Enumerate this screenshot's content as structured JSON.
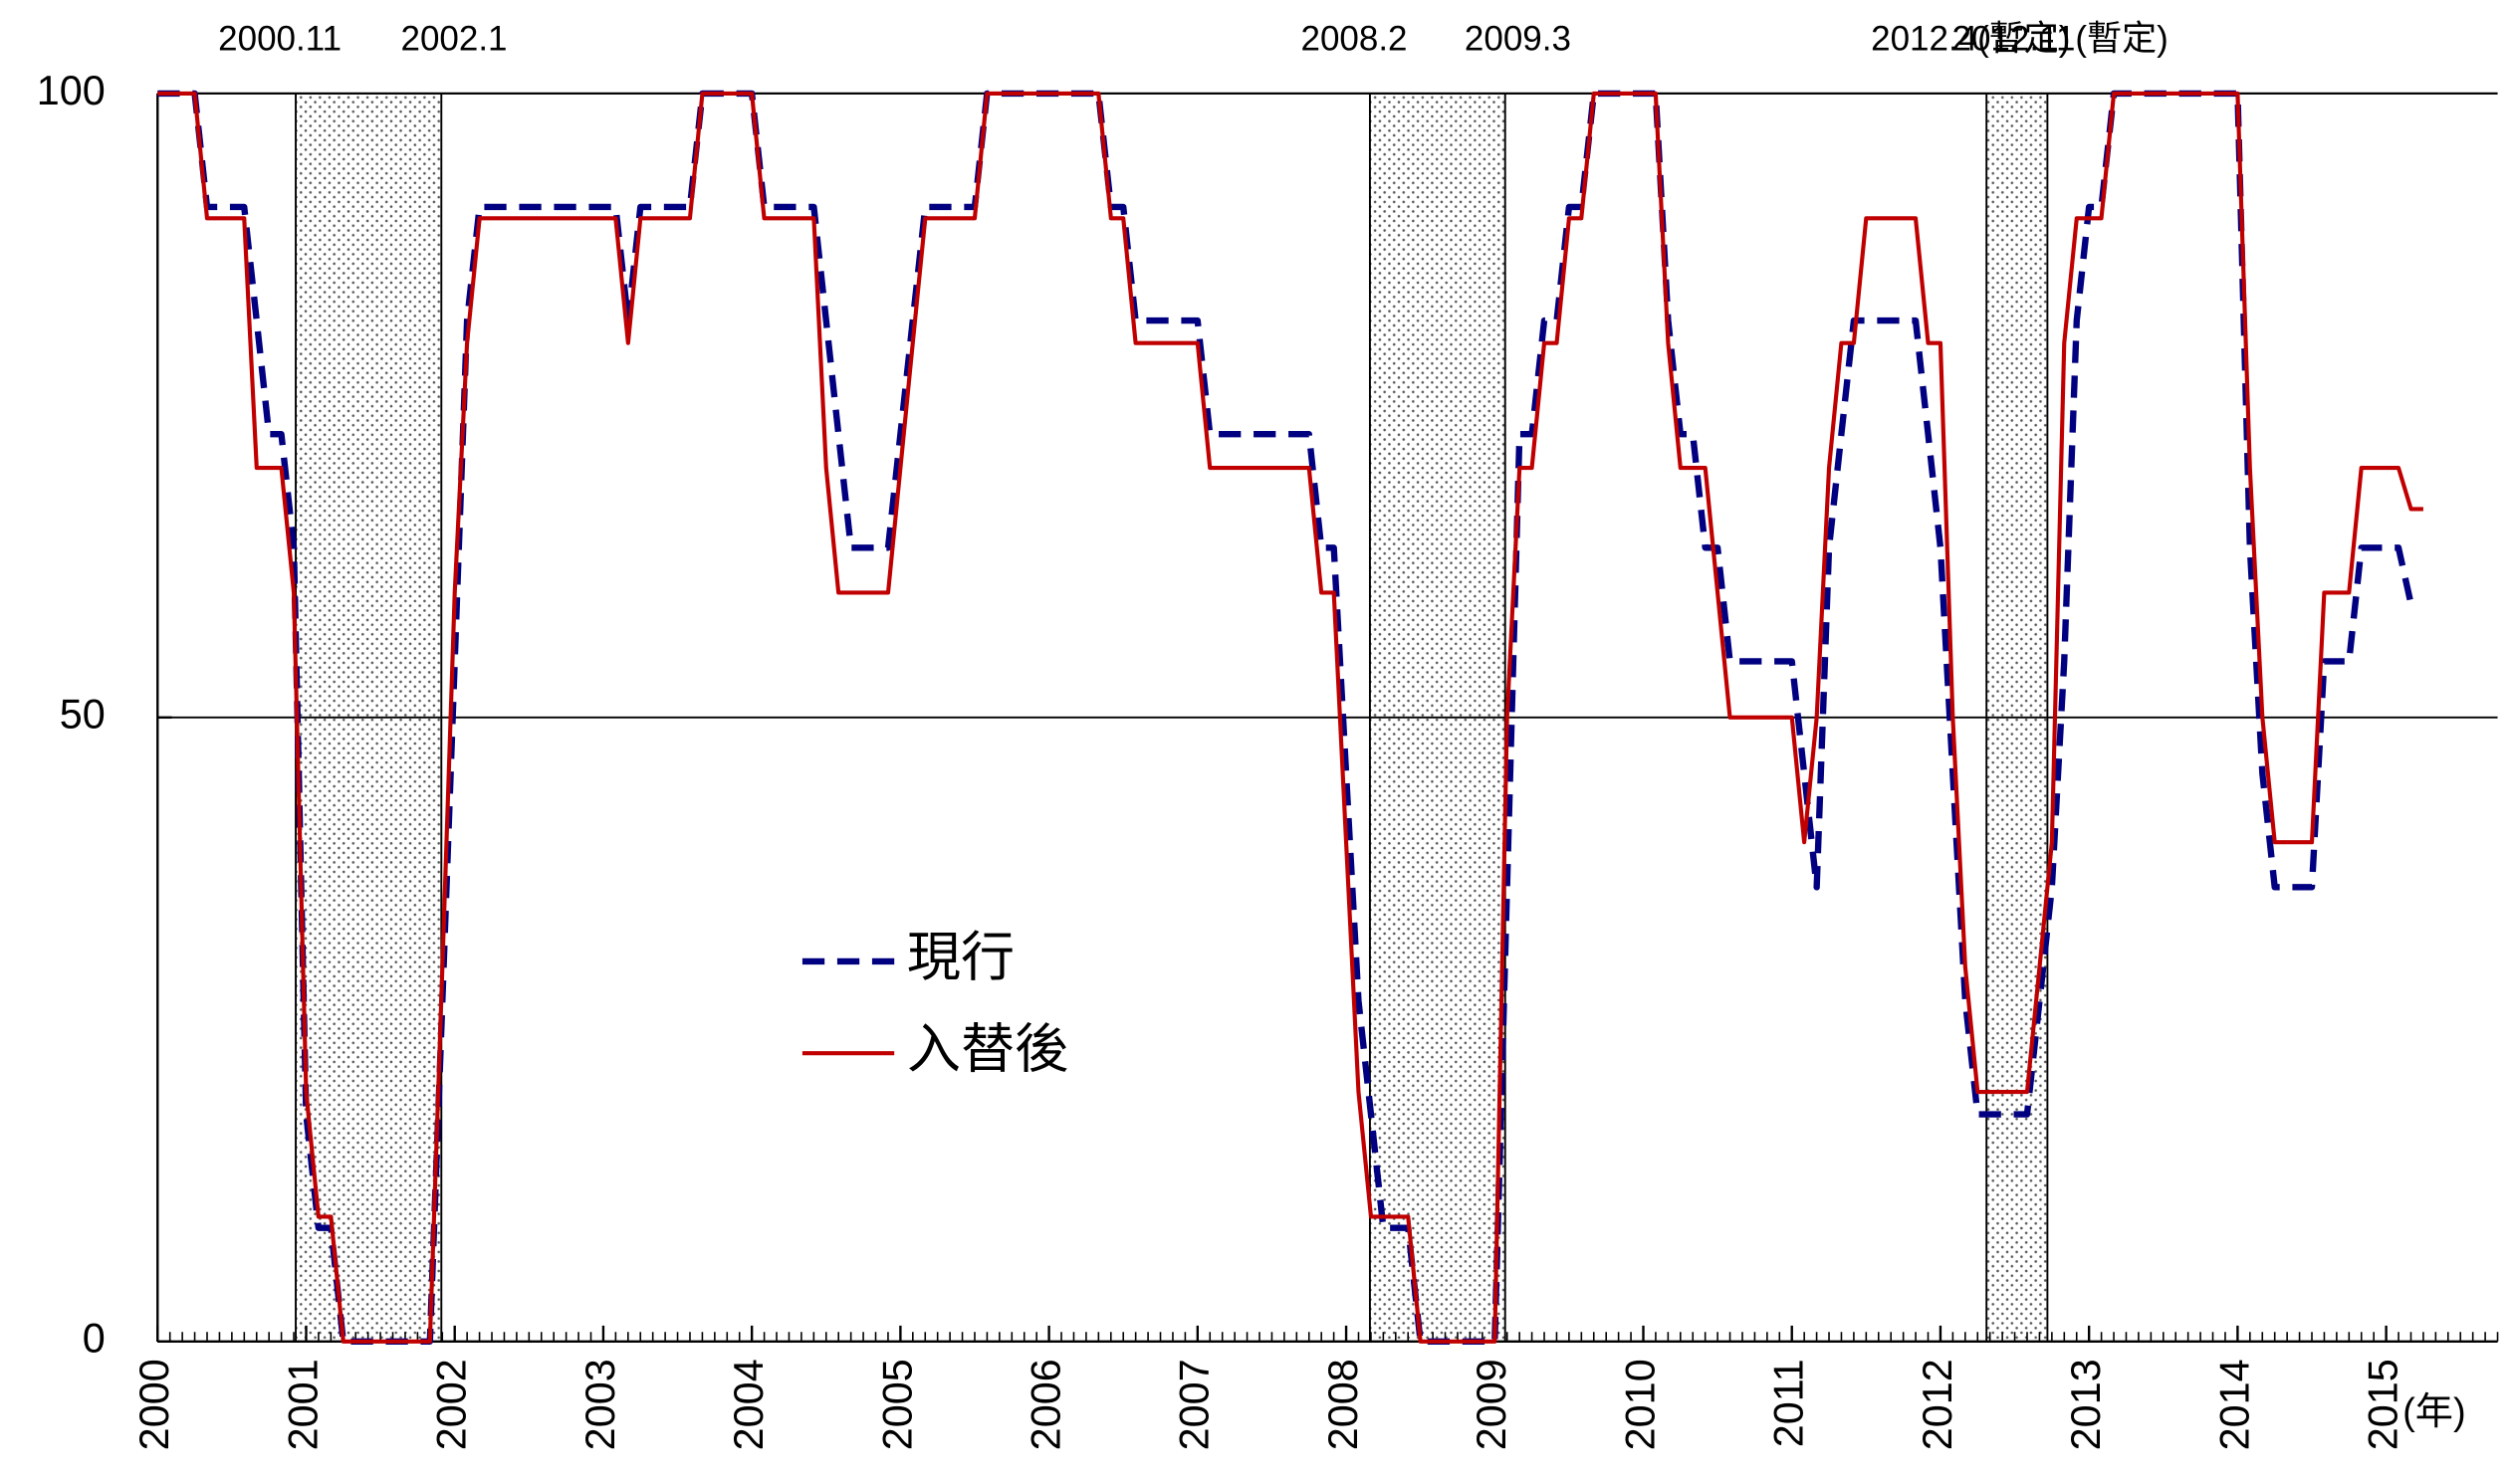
{
  "chart_data": {
    "type": "line",
    "x_label": "(年)",
    "x": [
      2000,
      2000.083,
      2000.167,
      2000.25,
      2000.333,
      2000.417,
      2000.5,
      2000.583,
      2000.667,
      2000.75,
      2000.833,
      2000.917,
      2001,
      2001.083,
      2001.167,
      2001.25,
      2001.333,
      2001.417,
      2001.5,
      2001.583,
      2001.667,
      2001.75,
      2001.833,
      2001.917,
      2002,
      2002.083,
      2002.167,
      2002.25,
      2002.333,
      2002.417,
      2002.5,
      2002.583,
      2002.667,
      2002.75,
      2002.833,
      2002.917,
      2003,
      2003.083,
      2003.167,
      2003.25,
      2003.333,
      2003.417,
      2003.5,
      2003.583,
      2003.667,
      2003.75,
      2003.833,
      2003.917,
      2004,
      2004.083,
      2004.167,
      2004.25,
      2004.333,
      2004.417,
      2004.5,
      2004.583,
      2004.667,
      2004.75,
      2004.833,
      2004.917,
      2005,
      2005.083,
      2005.167,
      2005.25,
      2005.333,
      2005.417,
      2005.5,
      2005.583,
      2005.667,
      2005.75,
      2005.833,
      2005.917,
      2006,
      2006.083,
      2006.167,
      2006.25,
      2006.333,
      2006.417,
      2006.5,
      2006.583,
      2006.667,
      2006.75,
      2006.833,
      2006.917,
      2007,
      2007.083,
      2007.167,
      2007.25,
      2007.333,
      2007.417,
      2007.5,
      2007.583,
      2007.667,
      2007.75,
      2007.833,
      2007.917,
      2008,
      2008.083,
      2008.167,
      2008.25,
      2008.333,
      2008.417,
      2008.5,
      2008.583,
      2008.667,
      2008.75,
      2008.833,
      2008.917,
      2009,
      2009.083,
      2009.167,
      2009.25,
      2009.333,
      2009.417,
      2009.5,
      2009.583,
      2009.667,
      2009.75,
      2009.833,
      2009.917,
      2010,
      2010.083,
      2010.167,
      2010.25,
      2010.333,
      2010.417,
      2010.5,
      2010.583,
      2010.667,
      2010.75,
      2010.833,
      2010.917,
      2011,
      2011.083,
      2011.167,
      2011.25,
      2011.333,
      2011.417,
      2011.5,
      2011.583,
      2011.667,
      2011.75,
      2011.833,
      2011.917,
      2012,
      2012.083,
      2012.167,
      2012.25,
      2012.333,
      2012.417,
      2012.5,
      2012.583,
      2012.667,
      2012.75,
      2012.833,
      2012.917,
      2013,
      2013.083,
      2013.167,
      2013.25,
      2013.333,
      2013.417,
      2013.5,
      2013.583,
      2013.667,
      2013.75,
      2013.833,
      2013.917,
      2014,
      2014.083,
      2014.167,
      2014.25,
      2014.333,
      2014.417,
      2014.5,
      2014.583,
      2014.667,
      2014.75,
      2014.833,
      2014.917,
      2015,
      2015.083,
      2015.167,
      2015.25
    ],
    "series": [
      {
        "name": "現行",
        "color": "#000080",
        "dashed": true,
        "values": [
          100,
          100,
          100,
          100,
          90.9,
          90.9,
          90.9,
          90.9,
          81.8,
          72.7,
          72.7,
          63.6,
          18.2,
          9.1,
          9.1,
          0,
          0,
          0,
          0,
          0,
          0,
          0,
          0,
          27.3,
          54.5,
          81.8,
          90.9,
          90.9,
          90.9,
          90.9,
          90.9,
          90.9,
          90.9,
          90.9,
          90.9,
          90.9,
          90.9,
          90.9,
          81.8,
          90.9,
          90.9,
          90.9,
          90.9,
          90.9,
          100,
          100,
          100,
          100,
          100,
          90.9,
          90.9,
          90.9,
          90.9,
          90.9,
          81.8,
          72.7,
          63.6,
          63.6,
          63.6,
          63.6,
          72.7,
          81.8,
          90.9,
          90.9,
          90.9,
          90.9,
          90.9,
          100,
          100,
          100,
          100,
          100,
          100,
          100,
          100,
          100,
          100,
          90.9,
          90.9,
          81.8,
          81.8,
          81.8,
          81.8,
          81.8,
          81.8,
          72.7,
          72.7,
          72.7,
          72.7,
          72.7,
          72.7,
          72.7,
          72.7,
          72.7,
          63.6,
          63.6,
          45.5,
          27.3,
          18.2,
          9.1,
          9.1,
          9.1,
          0,
          0,
          0,
          0,
          0,
          0,
          0,
          36.4,
          72.7,
          72.7,
          81.8,
          81.8,
          90.9,
          90.9,
          100,
          100,
          100,
          100,
          100,
          100,
          81.8,
          72.7,
          72.7,
          63.6,
          63.6,
          54.5,
          54.5,
          54.5,
          54.5,
          54.5,
          54.5,
          45.5,
          36.4,
          63.6,
          72.7,
          81.8,
          81.8,
          81.8,
          81.8,
          81.8,
          81.8,
          72.7,
          63.6,
          45.5,
          27.3,
          18.2,
          18.2,
          18.2,
          18.2,
          18.2,
          27.3,
          36.4,
          54.5,
          81.8,
          90.9,
          90.9,
          100,
          100,
          100,
          100,
          100,
          100,
          100,
          100,
          100,
          100,
          100,
          63.6,
          45.5,
          36.4,
          36.4,
          36.4,
          36.4,
          54.5,
          54.5,
          54.5,
          63.6,
          63.6,
          63.6,
          63.6,
          59.1,
          null
        ]
      },
      {
        "name": "入替後",
        "color": "#c00000",
        "dashed": false,
        "values": [
          100,
          100,
          100,
          100,
          90,
          90,
          90,
          90,
          70,
          70,
          70,
          60,
          20,
          10,
          10,
          0,
          0,
          0,
          0,
          0,
          0,
          0,
          0,
          30,
          60,
          80,
          90,
          90,
          90,
          90,
          90,
          90,
          90,
          90,
          90,
          90,
          90,
          90,
          80,
          90,
          90,
          90,
          90,
          90,
          100,
          100,
          100,
          100,
          100,
          90,
          90,
          90,
          90,
          90,
          70,
          60,
          60,
          60,
          60,
          60,
          70,
          80,
          90,
          90,
          90,
          90,
          90,
          100,
          100,
          100,
          100,
          100,
          100,
          100,
          100,
          100,
          100,
          90,
          90,
          80,
          80,
          80,
          80,
          80,
          80,
          70,
          70,
          70,
          70,
          70,
          70,
          70,
          70,
          70,
          60,
          60,
          40,
          20,
          10,
          10,
          10,
          10,
          0,
          0,
          0,
          0,
          0,
          0,
          0,
          50,
          70,
          70,
          80,
          80,
          90,
          90,
          100,
          100,
          100,
          100,
          100,
          100,
          80,
          70,
          70,
          70,
          60,
          50,
          50,
          50,
          50,
          50,
          50,
          40,
          50,
          70,
          80,
          80,
          90,
          90,
          90,
          90,
          90,
          80,
          80,
          50,
          30,
          20,
          20,
          20,
          20,
          20,
          30,
          40,
          80,
          90,
          90,
          90,
          100,
          100,
          100,
          100,
          100,
          100,
          100,
          100,
          100,
          100,
          100,
          70,
          50,
          40,
          40,
          40,
          40,
          60,
          60,
          60,
          70,
          70,
          70,
          70,
          66.7,
          66.7
        ]
      }
    ],
    "shaded_periods": [
      {
        "start": 2000.93,
        "end": 2001.91,
        "start_label": "2000.11",
        "end_label": "2002.1"
      },
      {
        "start": 2008.16,
        "end": 2009.07,
        "start_label": "2008.2",
        "end_label": "2009.3"
      },
      {
        "start": 2012.31,
        "end": 2012.72,
        "start_label": "2012.4(暫定)",
        "end_label": "2012.11(暫定)"
      }
    ],
    "xlim": [
      2000,
      2015.75
    ],
    "xticks": [
      2000,
      2001,
      2002,
      2003,
      2004,
      2005,
      2006,
      2007,
      2008,
      2009,
      2010,
      2011,
      2012,
      2013,
      2014,
      2015
    ],
    "ylim": [
      0,
      100
    ],
    "yticks": [
      0,
      50,
      100
    ],
    "grid": true
  }
}
